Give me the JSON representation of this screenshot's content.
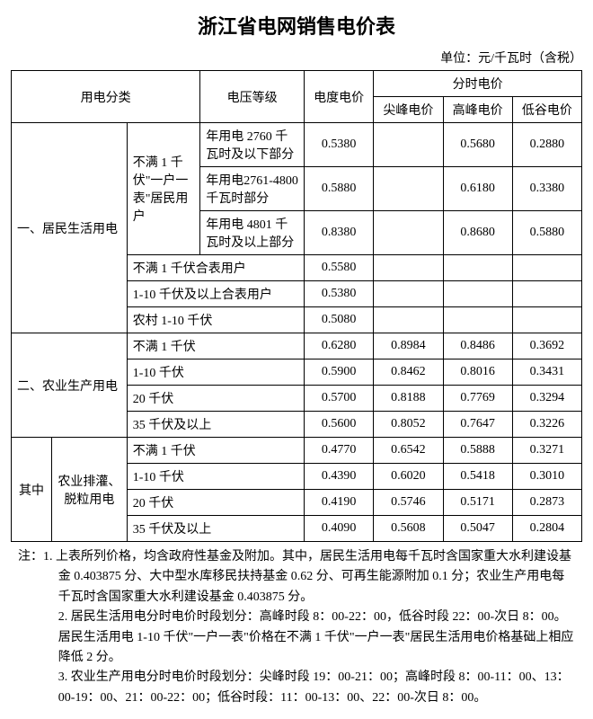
{
  "title": "浙江省电网销售电价表",
  "title_fontsize": 22,
  "unit_line": "单位：元/千瓦时（含税）",
  "body_fontsize": 14,
  "colors": {
    "text": "#000000",
    "bg": "#ffffff",
    "border": "#000000"
  },
  "head": {
    "category": "用电分类",
    "voltage": "电压等级",
    "base_price": "电度电价",
    "tod_group": "分时电价",
    "peak_sharp": "尖峰电价",
    "peak": "高峰电价",
    "valley": "低谷电价"
  },
  "sec1": {
    "name": "一、居民生活用电",
    "sub1": {
      "label": "不满 1 千伏\"一户一表\"居民用户",
      "rows": [
        {
          "tier": "年用电 2760 千瓦时及以下部分",
          "base": "0.5380",
          "sharp": "",
          "peak": "0.5680",
          "valley": "0.2880"
        },
        {
          "tier": "年用电2761-4800 千瓦时部分",
          "base": "0.5880",
          "sharp": "",
          "peak": "0.6180",
          "valley": "0.3380"
        },
        {
          "tier": "年用电 4801 千瓦时及以上部分",
          "base": "0.8380",
          "sharp": "",
          "peak": "0.8680",
          "valley": "0.5880"
        }
      ]
    },
    "rows": [
      {
        "voltage": "不满 1 千伏合表用户",
        "base": "0.5580",
        "sharp": "",
        "peak": "",
        "valley": ""
      },
      {
        "voltage": "1-10 千伏及以上合表用户",
        "base": "0.5380",
        "sharp": "",
        "peak": "",
        "valley": ""
      },
      {
        "voltage": "农村 1-10 千伏",
        "base": "0.5080",
        "sharp": "",
        "peak": "",
        "valley": ""
      }
    ]
  },
  "sec2": {
    "name": "二、农业生产用电",
    "rows": [
      {
        "voltage": "不满 1 千伏",
        "base": "0.6280",
        "sharp": "0.8984",
        "peak": "0.8486",
        "valley": "0.3692"
      },
      {
        "voltage": "1-10 千伏",
        "base": "0.5900",
        "sharp": "0.8462",
        "peak": "0.8016",
        "valley": "0.3431"
      },
      {
        "voltage": "20 千伏",
        "base": "0.5700",
        "sharp": "0.8188",
        "peak": "0.7769",
        "valley": "0.3294"
      },
      {
        "voltage": "35 千伏及以上",
        "base": "0.5600",
        "sharp": "0.8052",
        "peak": "0.7647",
        "valley": "0.3226"
      }
    ]
  },
  "sec3": {
    "name1": "其中",
    "name2": "农业排灌、脱粒用电",
    "rows": [
      {
        "voltage": "不满 1 千伏",
        "base": "0.4770",
        "sharp": "0.6542",
        "peak": "0.5888",
        "valley": "0.3271"
      },
      {
        "voltage": "1-10 千伏",
        "base": "0.4390",
        "sharp": "0.6020",
        "peak": "0.5418",
        "valley": "0.3010"
      },
      {
        "voltage": "20 千伏",
        "base": "0.4190",
        "sharp": "0.5746",
        "peak": "0.5171",
        "valley": "0.2873"
      },
      {
        "voltage": "35 千伏及以上",
        "base": "0.4090",
        "sharp": "0.5608",
        "peak": "0.5047",
        "valley": "0.2804"
      }
    ]
  },
  "notes": {
    "prefix": "注：",
    "items": [
      "1. 上表所列价格，均含政府性基金及附加。其中，居民生活用电每千瓦时含国家重大水利建设基金 0.403875 分、大中型水库移民扶持基金 0.62 分、可再生能源附加 0.1 分；农业生产用电每千瓦时含国家重大水利建设基金 0.403875 分。",
      "2. 居民生活用电分时电价时段划分：高峰时段 8：00-22：00，低谷时段 22：00-次日 8：00。居民生活用电 1-10 千伏\"一户一表\"价格在不满 1 千伏\"一户一表\"居民生活用电价格基础上相应降低 2 分。",
      "3. 农业生产用电分时电价时段划分：尖峰时段 19：00-21：00；高峰时段 8：00-11：00、13：00-19：00、21：00-22：00；低谷时段：11：00-13：00、22：00-次日 8：00。"
    ]
  }
}
